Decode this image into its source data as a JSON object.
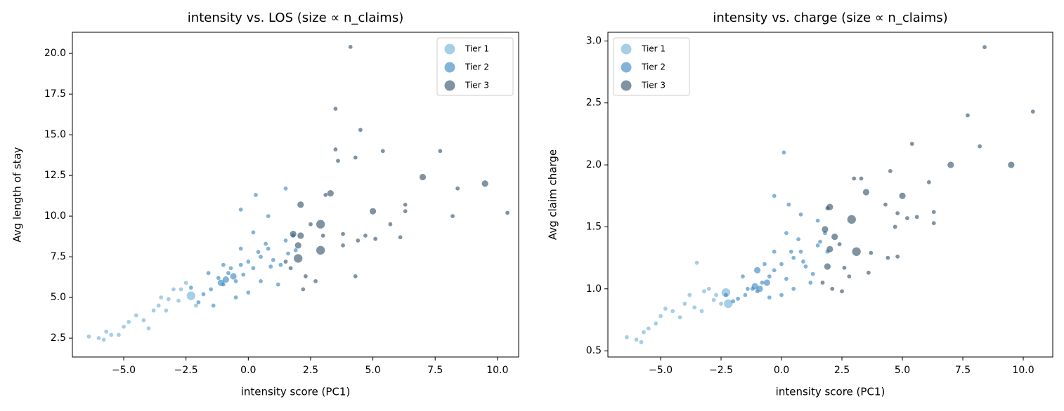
{
  "chart_data": [
    {
      "type": "scatter",
      "title": "intensity vs. LOS (size ∝ n_claims)",
      "x_label": "intensity score (PC1)",
      "y_label": "Avg length of stay",
      "xlim": [
        -7.06,
        10.85
      ],
      "ylim": [
        1.34,
        21.3
      ],
      "legend": "upper right",
      "alpha": 0.6,
      "xticks": [
        {
          "value": -5,
          "label": "−5.0"
        },
        {
          "value": -2.5,
          "label": "−2.5"
        },
        {
          "value": 0,
          "label": "0.0"
        },
        {
          "value": 2.5,
          "label": "2.5"
        },
        {
          "value": 5,
          "label": "5.0"
        },
        {
          "value": 7.5,
          "label": "7.5"
        },
        {
          "value": 10,
          "label": "10.0"
        }
      ],
      "yticks": [
        2.5,
        5,
        7.5,
        10,
        12.5,
        15,
        17.5,
        20
      ],
      "series": [
        {
          "name": "Tier 1",
          "color": "#6baed6",
          "x": [
            -6.4,
            -6.0,
            -5.8,
            -5.7,
            -5.5,
            -5.2,
            -5.0,
            -4.8,
            -4.5,
            -4.2,
            -4.0,
            -3.8,
            -3.6,
            -3.5,
            -3.2,
            -3.0,
            -2.8,
            -2.5,
            -2.3,
            -2.1,
            -2.7,
            -3.3
          ],
          "values": [
            2.6,
            2.5,
            2.4,
            2.9,
            2.7,
            2.7,
            3.2,
            3.5,
            3.9,
            3.6,
            3.1,
            4.2,
            4.5,
            5.0,
            4.9,
            5.5,
            4.8,
            5.9,
            5.1,
            4.5,
            5.5,
            4.2
          ],
          "sizes": [
            20,
            20,
            20,
            20,
            20,
            20,
            20,
            20,
            20,
            20,
            20,
            20,
            20,
            20,
            20,
            20,
            20,
            20,
            90,
            20,
            20,
            20
          ]
        },
        {
          "name": "Tier 2",
          "color": "#3182bd",
          "x": [
            -1.5,
            -1.2,
            -1,
            -0.8,
            -0.5,
            -0.3,
            0,
            0.2,
            0.5,
            0.8,
            1.0,
            1.3,
            1.5,
            0.7,
            -0.3,
            -1.0,
            -1.8,
            -2.0,
            -1.4,
            0.2,
            0.8,
            -0.3,
            0.3,
            1.5,
            1.8,
            -0.5,
            0.0,
            0.5,
            1.2,
            -0.7,
            -0.9,
            -0.6,
            -1.1,
            0.9,
            1.9,
            -1.6,
            -2.3,
            0.4,
            -0.2,
            1.6
          ],
          "values": [
            5.5,
            6.2,
            5.8,
            6.5,
            6.0,
            7.0,
            7.2,
            6.8,
            7.5,
            8.0,
            7.3,
            7.0,
            8.5,
            8.3,
            8.0,
            7.0,
            5.2,
            4.7,
            4.5,
            9.0,
            10.0,
            10.4,
            11.3,
            11.7,
            8.8,
            5.0,
            5.3,
            6.0,
            5.8,
            6.8,
            6.1,
            6.3,
            5.9,
            6.9,
            7.9,
            6.5,
            5.6,
            7.8,
            6.4,
            7.7
          ],
          "sizes": [
            20,
            20,
            20,
            20,
            20,
            20,
            20,
            20,
            20,
            20,
            20,
            20,
            20,
            20,
            20,
            20,
            20,
            20,
            20,
            20,
            20,
            20,
            20,
            20,
            20,
            20,
            20,
            20,
            20,
            20,
            50,
            50,
            50,
            20,
            20,
            20,
            20,
            20,
            20,
            20
          ]
        },
        {
          "name": "Tier 3",
          "color": "#2c4b66",
          "x": [
            4.1,
            3.5,
            4.5,
            3.5,
            5.4,
            7.7,
            3.6,
            4.3,
            7.0,
            9.5,
            8.4,
            3.3,
            3.1,
            2.1,
            6.3,
            6.3,
            5.0,
            10.4,
            8.2,
            2.9,
            5.7,
            2.5,
            3.8,
            2.1,
            3.0,
            1.8,
            4.4,
            4.7,
            5.1,
            6.1,
            3.8,
            2.9,
            2.0,
            1.7,
            2.3,
            2.7,
            4.3,
            2.2,
            2.0,
            1.5
          ],
          "values": [
            20.4,
            16.6,
            15.3,
            14.1,
            14.0,
            14.0,
            13.4,
            13.6,
            12.4,
            12.0,
            11.7,
            11.4,
            11.3,
            10.7,
            10.7,
            10.3,
            10.3,
            10.2,
            10.0,
            9.5,
            9.5,
            9.5,
            8.9,
            8.8,
            8.8,
            8.9,
            8.5,
            8.8,
            8.6,
            8.7,
            8.2,
            7.9,
            7.4,
            6.8,
            6.3,
            6.0,
            6.3,
            5.5,
            8.2,
            7.2
          ],
          "sizes": [
            20,
            20,
            20,
            20,
            20,
            20,
            20,
            20,
            50,
            50,
            20,
            50,
            20,
            50,
            20,
            20,
            50,
            20,
            20,
            90,
            20,
            20,
            20,
            50,
            20,
            50,
            20,
            20,
            20,
            20,
            20,
            90,
            90,
            20,
            20,
            20,
            20,
            20,
            50,
            20
          ]
        }
      ]
    },
    {
      "type": "scatter",
      "title": "intensity vs. charge (size ∝ n_claims)",
      "x_label": "intensity score (PC1)",
      "y_label": "Avg claim charge",
      "xlim": [
        -7.18,
        11.22
      ],
      "ylim": [
        0.45,
        3.07
      ],
      "legend": "upper left",
      "alpha": 0.6,
      "xticks": [
        {
          "value": -5,
          "label": "−5.0"
        },
        {
          "value": -2.5,
          "label": "−2.5"
        },
        {
          "value": 0,
          "label": "0.0"
        },
        {
          "value": 2.5,
          "label": "2.5"
        },
        {
          "value": 5,
          "label": "5.0"
        },
        {
          "value": 7.5,
          "label": "7.5"
        },
        {
          "value": 10,
          "label": "10.0"
        }
      ],
      "yticks": [
        0.5,
        1,
        1.5,
        2,
        2.5,
        3
      ],
      "series": [
        {
          "name": "Tier 1",
          "color": "#6baed6",
          "x": [
            -6.4,
            -6.0,
            -5.8,
            -5.7,
            -5.5,
            -5.2,
            -5.0,
            -4.8,
            -4.5,
            -4.2,
            -4.0,
            -3.8,
            -3.6,
            -3.5,
            -3.2,
            -3.0,
            -2.8,
            -2.5,
            -2.3,
            -2.2,
            -2.7,
            -3.3
          ],
          "values": [
            0.61,
            0.59,
            0.57,
            0.65,
            0.68,
            0.72,
            0.78,
            0.84,
            0.82,
            0.77,
            0.88,
            0.95,
            0.85,
            1.21,
            0.98,
            1.0,
            0.91,
            0.88,
            0.97,
            0.88,
            0.95,
            0.82
          ],
          "sizes": [
            20,
            20,
            20,
            20,
            20,
            20,
            20,
            20,
            20,
            20,
            20,
            20,
            20,
            20,
            20,
            20,
            20,
            20,
            90,
            90,
            20,
            20
          ]
        },
        {
          "name": "Tier 2",
          "color": "#3182bd",
          "x": [
            -1.5,
            -1.2,
            -1,
            -0.8,
            -0.5,
            -0.3,
            0,
            0.2,
            0.5,
            0.8,
            1.0,
            1.3,
            1.5,
            0.7,
            -0.3,
            -1.0,
            -1.8,
            -2.0,
            -1.4,
            0.2,
            0.8,
            -0.3,
            0.3,
            1.5,
            1.8,
            -0.5,
            0.0,
            0.5,
            1.2,
            -0.7,
            -0.9,
            -0.6,
            -1.1,
            0.9,
            1.9,
            -1.6,
            -2.3,
            0.4,
            0.1,
            1.6
          ],
          "values": [
            0.95,
            1.0,
            0.98,
            1.05,
            1.1,
            1.15,
            1.2,
            1.08,
            1.25,
            1.3,
            1.18,
            1.12,
            1.35,
            1.4,
            1.3,
            1.15,
            0.92,
            0.9,
            1.0,
            1.45,
            1.6,
            1.75,
            1.68,
            1.55,
            1.45,
            0.93,
            0.95,
            1.0,
            1.05,
            1.2,
            1.0,
            1.05,
            1.02,
            1.22,
            1.3,
            1.1,
            0.95,
            1.3,
            2.1,
            1.38
          ],
          "sizes": [
            20,
            20,
            20,
            20,
            20,
            20,
            20,
            20,
            20,
            20,
            20,
            20,
            20,
            20,
            20,
            50,
            20,
            20,
            20,
            20,
            20,
            20,
            20,
            20,
            20,
            20,
            20,
            20,
            20,
            20,
            50,
            50,
            50,
            20,
            20,
            20,
            20,
            20,
            20,
            20
          ]
        },
        {
          "name": "Tier 3",
          "color": "#2c4b66",
          "x": [
            8.4,
            7.7,
            10.4,
            5.4,
            8.2,
            7.0,
            9.5,
            4.5,
            3.0,
            3.3,
            6.1,
            3.5,
            5.0,
            4.3,
            2.0,
            1.9,
            6.3,
            4.8,
            5.2,
            2.9,
            5.6,
            6.3,
            4.7,
            1.8,
            2.2,
            2.0,
            3.1,
            2.4,
            3.7,
            4.4,
            4.8,
            1.9,
            2.6,
            3.6,
            2.8,
            2.1,
            2.5,
            1.7
          ],
          "values": [
            2.95,
            2.4,
            2.43,
            2.17,
            2.15,
            2.0,
            2.0,
            1.95,
            1.89,
            1.89,
            1.86,
            1.78,
            1.75,
            1.68,
            1.66,
            1.65,
            1.62,
            1.61,
            1.57,
            1.56,
            1.58,
            1.53,
            1.5,
            1.48,
            1.42,
            1.32,
            1.3,
            1.36,
            1.29,
            1.25,
            1.26,
            1.18,
            1.17,
            1.13,
            1.1,
            1.0,
            0.98,
            1.05
          ],
          "sizes": [
            20,
            20,
            20,
            20,
            20,
            50,
            50,
            20,
            20,
            20,
            20,
            50,
            50,
            20,
            50,
            20,
            20,
            20,
            20,
            90,
            20,
            20,
            20,
            50,
            50,
            50,
            90,
            20,
            20,
            20,
            20,
            50,
            20,
            20,
            20,
            20,
            20,
            20
          ]
        }
      ]
    }
  ]
}
